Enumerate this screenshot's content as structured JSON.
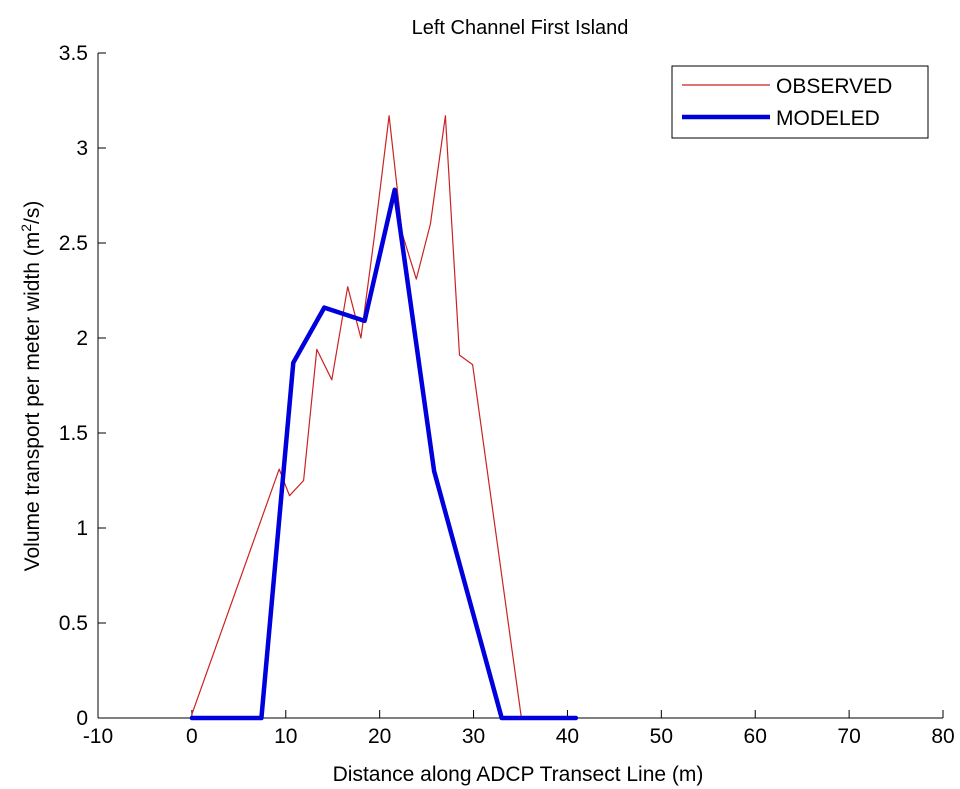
{
  "chart_data": {
    "type": "line",
    "title": "Left Channel First Island",
    "xlabel": "Distance along ADCP Transect Line (m)",
    "ylabel_main": "Volume transport per meter width (m",
    "ylabel_sup": "2",
    "ylabel_tail": "/s)",
    "xlim": [
      -10,
      80
    ],
    "ylim": [
      0,
      3.5
    ],
    "x_ticks": [
      -10,
      0,
      10,
      20,
      30,
      40,
      50,
      60,
      70,
      80
    ],
    "x_tick_labels": [
      "-10",
      "0",
      "10",
      "20",
      "30",
      "40",
      "50",
      "60",
      "70",
      "80"
    ],
    "y_ticks": [
      0,
      0.5,
      1,
      1.5,
      2,
      2.5,
      3,
      3.5
    ],
    "y_tick_labels": [
      "0",
      "0.5",
      "1",
      "1.5",
      "2",
      "2.5",
      "3",
      "3.5"
    ],
    "grid": false,
    "legend_position": "top-right",
    "series": [
      {
        "name": "OBSERVED",
        "color": "#cc2222",
        "x": [
          0,
          9.3,
          10.4,
          11.9,
          13.3,
          14.9,
          16.6,
          18.0,
          19.4,
          21.0,
          22.4,
          23.9,
          25.4,
          27.0,
          28.5,
          29.9,
          35.1
        ],
        "y": [
          0.02,
          1.31,
          1.17,
          1.25,
          1.94,
          1.78,
          2.27,
          2.0,
          2.52,
          3.17,
          2.55,
          2.31,
          2.6,
          3.17,
          1.91,
          1.86,
          0
        ]
      },
      {
        "name": "MODELED",
        "color": "#0000dd",
        "x": [
          0,
          7.4,
          10.8,
          14.1,
          18.4,
          21.6,
          25.8,
          33.0,
          40.9
        ],
        "y": [
          0,
          0,
          1.87,
          2.16,
          2.09,
          2.78,
          1.3,
          0,
          0
        ]
      }
    ]
  }
}
